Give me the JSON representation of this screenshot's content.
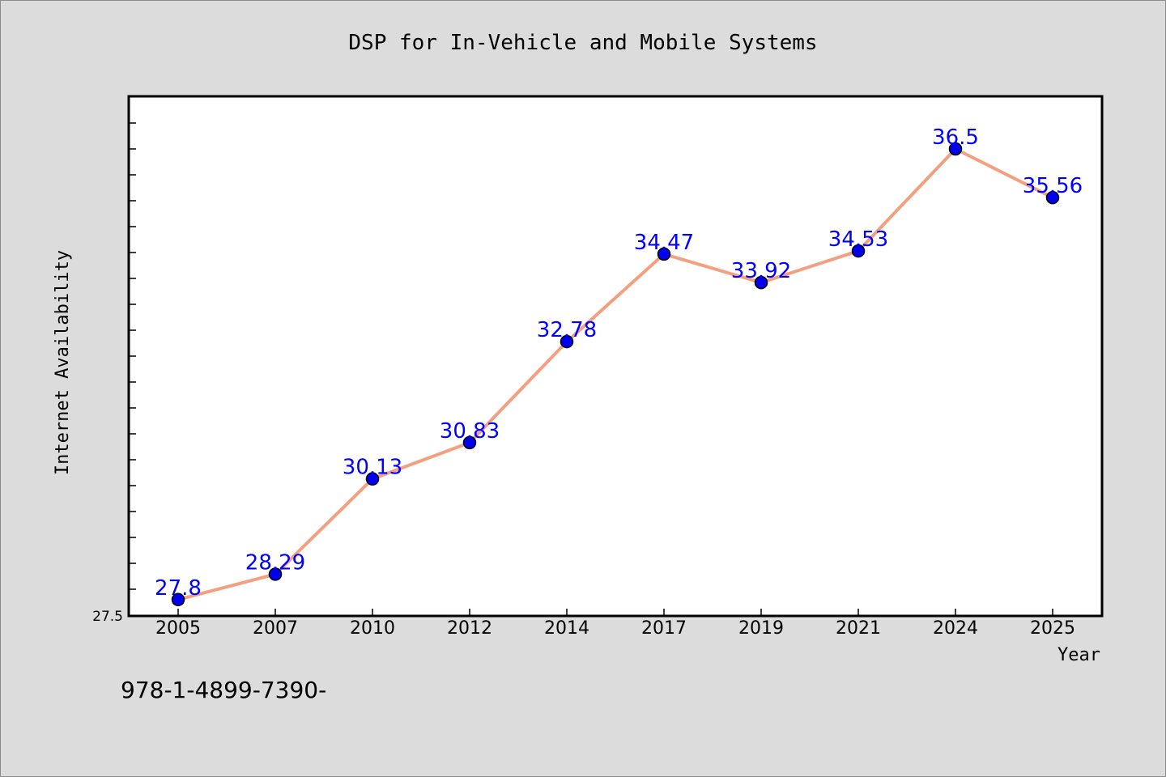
{
  "chart_data": {
    "type": "line",
    "title": "DSP for In-Vehicle and Mobile Systems",
    "xlabel": "Year",
    "ylabel": "Internet Availability",
    "categories": [
      "2005",
      "2007",
      "2010",
      "2012",
      "2014",
      "2017",
      "2019",
      "2021",
      "2024",
      "2025"
    ],
    "series": [
      {
        "values": [
          27.8,
          28.29,
          30.13,
          30.83,
          32.78,
          34.47,
          33.92,
          34.53,
          36.5,
          35.56
        ],
        "data_labels": [
          "27.8",
          "28.29",
          "30.13",
          "30.83",
          "32.78",
          "34.47",
          "33.92",
          "34.53",
          "36.5",
          "35.56"
        ]
      }
    ],
    "ylim": [
      27.5,
      37.5
    ],
    "y_tick_label": "27.5",
    "grid": false,
    "legend": "none",
    "colors": {
      "line": "#f4a080",
      "marker": "#0000ee",
      "data_label": "#0000ff",
      "plot_background": "#ffffff",
      "page_background": "#dcdcdc"
    }
  },
  "footer_text": "978-1-4899-7390-"
}
